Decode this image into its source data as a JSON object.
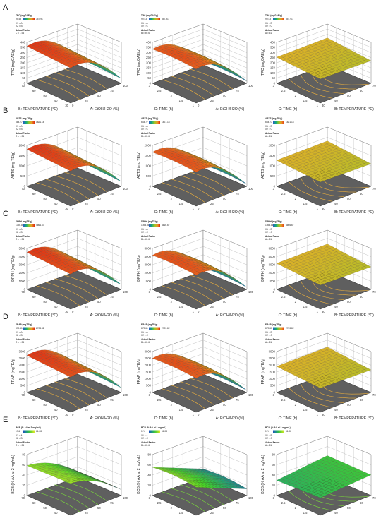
{
  "rows": [
    {
      "letter": "A",
      "response": "TPC",
      "zlabel": "TPC (mgGAE/g)",
      "zticks": [
        "0",
        "50",
        "100",
        "150",
        "200",
        "250",
        "300",
        "350",
        "400"
      ],
      "legend_title": "TPC (mgGAE/g)",
      "legend_lo": "99.43",
      "legend_hi": "357.91",
      "surface": "warm",
      "plots": [
        {
          "left_axis": "B: TEMPERATURE (°C)",
          "right_axis": "A: EtOH/H2O (%)",
          "left_ticks": [
            "30",
            "40",
            "50",
            "60",
            "70"
          ],
          "right_ticks": [
            "0",
            "25",
            "50",
            "75",
            "100"
          ],
          "coded": [
            "X1 = A",
            "X2 = B"
          ],
          "actual": "Actual Factor",
          "fixed": "C = 1.94"
        },
        {
          "left_axis": "C: TIME (h)",
          "right_axis": "A: EtOH/H2O (%)",
          "left_ticks": [
            "1",
            "1.5",
            "2",
            "2.5",
            "3"
          ],
          "right_ticks": [
            "0",
            "25",
            "50",
            "75",
            "100"
          ],
          "coded": [
            "X1 = A",
            "X2 = C"
          ],
          "actual": "Actual Factor",
          "fixed": "B = 49.6"
        },
        {
          "left_axis": "C: TIME (h)",
          "right_axis": "B: TEMPERATURE (°C)",
          "left_ticks": [
            "1",
            "1.5",
            "2",
            "2.5",
            "3"
          ],
          "right_ticks": [
            "30",
            "40",
            "50",
            "60",
            "70"
          ],
          "coded": [
            "X1 = B",
            "X2 = C"
          ],
          "actual": "Actual Factor",
          "fixed": "A = 51"
        }
      ]
    },
    {
      "letter": "B",
      "response": "ABTS",
      "zlabel": "ABTS (mg TE/g)",
      "zticks": [
        "0",
        "500",
        "1000",
        "1500",
        "2000"
      ],
      "legend_title": "ABTS (mg TE/g)",
      "legend_lo": "664.77",
      "legend_hi": "1821.18",
      "surface": "warm",
      "plots": [
        {
          "left_axis": "B: TEMPERATURE (°C)",
          "right_axis": "A: EtOH/H2O (%)",
          "left_ticks": [
            "30",
            "40",
            "50",
            "60",
            "70"
          ],
          "right_ticks": [
            "0",
            "25",
            "50",
            "75",
            "100"
          ],
          "coded": [
            "X1 = A",
            "X2 = B"
          ],
          "actual": "Actual Factor",
          "fixed": "C = 1.94"
        },
        {
          "left_axis": "C: TIME (h)",
          "right_axis": "A: EtOH/H2O (%)",
          "left_ticks": [
            "1",
            "1.5",
            "2",
            "2.5",
            "3"
          ],
          "right_ticks": [
            "0",
            "25",
            "50",
            "75",
            "100"
          ],
          "coded": [
            "X1 = A",
            "X2 = C"
          ],
          "actual": "Actual Factor",
          "fixed": "B = 49.6"
        },
        {
          "left_axis": "C: TIME (h)",
          "right_axis": "B: TEMPERATURE (°C)",
          "left_ticks": [
            "1",
            "1.5",
            "2",
            "2.5",
            "3"
          ],
          "right_ticks": [
            "30",
            "40",
            "50",
            "60",
            "70"
          ],
          "coded": [
            "X1 = B",
            "X2 = C"
          ],
          "actual": "Actual Factor",
          "fixed": "A = 51"
        }
      ]
    },
    {
      "letter": "C",
      "response": "DPPH",
      "zlabel": "DPPH (mgTE/g)",
      "zticks": [
        "0",
        "1000",
        "2000",
        "3000",
        "4000",
        "5000"
      ],
      "legend_title": "DPPH (mgTE/g)",
      "legend_lo": "1398.86",
      "legend_hi": "4666.67",
      "surface": "warm",
      "plots": [
        {
          "left_axis": "B: TEMPERATURE (°C)",
          "right_axis": "A: EtOH/H2O (%)",
          "left_ticks": [
            "30",
            "40",
            "50",
            "60",
            "70"
          ],
          "right_ticks": [
            "0",
            "25",
            "50",
            "75",
            "100"
          ],
          "coded": [
            "X1 = A",
            "X2 = B"
          ],
          "actual": "Actual Factor",
          "fixed": "C = 1.94"
        },
        {
          "left_axis": "C: TIME (h)",
          "right_axis": "A: EtOH/H2O (%)",
          "left_ticks": [
            "1",
            "1.5",
            "2",
            "2.5",
            "3"
          ],
          "right_ticks": [
            "0",
            "25",
            "50",
            "75",
            "100"
          ],
          "coded": [
            "X1 = A",
            "X2 = C"
          ],
          "actual": "Actual Factor",
          "fixed": "B = 49.6"
        },
        {
          "left_axis": "C: TIME (h)",
          "right_axis": "B: TEMPERATURE (°C)",
          "left_ticks": [
            "1",
            "1.5",
            "2",
            "2.5",
            "3"
          ],
          "right_ticks": [
            "30",
            "40",
            "50",
            "60",
            "70"
          ],
          "coded": [
            "X1 = B",
            "X2 = C"
          ],
          "actual": "Actual Factor",
          "fixed": "A = 51"
        }
      ]
    },
    {
      "letter": "D",
      "response": "FRAP",
      "zlabel": "FRAP (mgTE/g)",
      "zticks": [
        "0",
        "500",
        "1000",
        "1500",
        "2000",
        "2500",
        "3000"
      ],
      "legend_title": "FRAP (mgTE/g)",
      "legend_lo": "879.61",
      "legend_hi": "2703.82",
      "surface": "warm",
      "plots": [
        {
          "left_axis": "B: TEMPERATURE (°C)",
          "right_axis": "A: EtOH/H2O (%)",
          "left_ticks": [
            "30",
            "40",
            "50",
            "60",
            "70"
          ],
          "right_ticks": [
            "0",
            "25",
            "50",
            "75",
            "100"
          ],
          "coded": [
            "X1 = A",
            "X2 = B"
          ],
          "actual": "Actual Factor",
          "fixed": "C = 1.94"
        },
        {
          "left_axis": "C: TIME (h)",
          "right_axis": "A: EtOH/H2O (%)",
          "left_ticks": [
            "1",
            "1.5",
            "2",
            "2.5",
            "3"
          ],
          "right_ticks": [
            "0",
            "25",
            "50",
            "75",
            "100"
          ],
          "coded": [
            "X1 = A",
            "X2 = C"
          ],
          "actual": "Actual Factor",
          "fixed": "B = 49.6"
        },
        {
          "left_axis": "C: TIME (h)",
          "right_axis": "B: TEMPERATURE (°C)",
          "left_ticks": [
            "1",
            "1.5",
            "2",
            "2.5",
            "3"
          ],
          "right_ticks": [
            "30",
            "40",
            "50",
            "60",
            "70"
          ],
          "coded": [
            "X1 = B",
            "X2 = C"
          ],
          "actual": "Actual Factor",
          "fixed": "A = 51"
        }
      ]
    },
    {
      "letter": "E",
      "response": "BCB",
      "zlabel": "BCB (% AA at 2 mg/mL)",
      "zticks": [
        "0",
        "20",
        "40",
        "60",
        "80"
      ],
      "legend_title": "BCB (% AA at 2 mg/mL)",
      "legend_lo": "17.6",
      "legend_hi": "61.08",
      "surface": "green",
      "plots": [
        {
          "left_axis": "B: TEMPERATURE (°C)",
          "right_axis": "A: EtOH/H2O (%)",
          "left_ticks": [
            "30",
            "40",
            "50",
            "60",
            "70"
          ],
          "right_ticks": [
            "0",
            "25",
            "50",
            "75",
            "100"
          ],
          "coded": [
            "X1 = A",
            "X2 = B"
          ],
          "actual": "Actual Factor",
          "fixed": "C = 1.94"
        },
        {
          "left_axis": "C: TIME (h)",
          "right_axis": "A: EtOH/H2O (%)",
          "left_ticks": [
            "1",
            "1.5",
            "2",
            "2.5",
            "3"
          ],
          "right_ticks": [
            "0",
            "25",
            "50",
            "75",
            "100"
          ],
          "coded": [
            "X1 = A",
            "X2 = C"
          ],
          "actual": "Actual Factor",
          "fixed": "B = 49.6"
        },
        {
          "left_axis": "C: TIME (h)",
          "right_axis": "B: TEMPERATURE (°C)",
          "left_ticks": [
            "1",
            "1.5",
            "2",
            "2.5",
            "3"
          ],
          "right_ticks": [
            "30",
            "40",
            "50",
            "60",
            "70"
          ],
          "coded": [
            "X1 = B",
            "X2 = C"
          ],
          "actual": "Actual Factor",
          "fixed": "A = 51"
        }
      ]
    }
  ],
  "chart_data": {
    "type": "surface",
    "grid": true,
    "panels": [
      "A",
      "B",
      "C",
      "D",
      "E"
    ],
    "responses": [
      {
        "panel": "A",
        "name": "TPC (mgGAE/g)",
        "zlim": [
          0,
          400
        ],
        "design_range": [
          99.43,
          357.91
        ]
      },
      {
        "panel": "B",
        "name": "ABTS (mg TE/g)",
        "zlim": [
          0,
          2000
        ],
        "design_range": [
          664.77,
          1821.18
        ]
      },
      {
        "panel": "C",
        "name": "DPPH (mgTE/g)",
        "zlim": [
          0,
          5000
        ],
        "design_range": [
          1398.86,
          4666.67
        ]
      },
      {
        "panel": "D",
        "name": "FRAP (mgTE/g)",
        "zlim": [
          0,
          3000
        ],
        "design_range": [
          879.61,
          2703.82
        ]
      },
      {
        "panel": "E",
        "name": "BCB (% AA at 2 mg/mL)",
        "zlim": [
          0,
          80
        ],
        "design_range": [
          17.6,
          61.08
        ]
      }
    ],
    "factors": [
      {
        "name": "A: EtOH/H2O (%)",
        "range": [
          0,
          100
        ]
      },
      {
        "name": "B: TEMPERATURE (°C)",
        "range": [
          30,
          70
        ]
      },
      {
        "name": "C: TIME (h)",
        "range": [
          1,
          3
        ]
      }
    ],
    "fixed_factors": {
      "AB": "C = 1.94",
      "AC": "B = 49.6",
      "BC": "A = 51"
    }
  }
}
